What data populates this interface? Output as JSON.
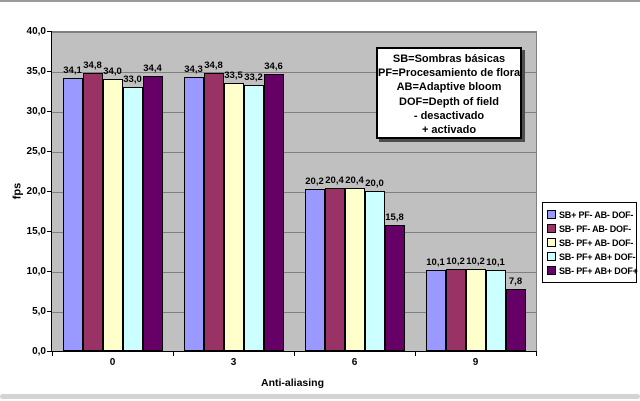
{
  "chart_data": {
    "type": "bar",
    "xlabel": "Anti-aliasing",
    "ylabel": "fps",
    "ylim": [
      0,
      40
    ],
    "ytick_step": 5,
    "decimal_separator": ",",
    "grid": true,
    "plot_bg": "#C0C0C0",
    "gridline_color": "#808080",
    "legend_position": "right",
    "categories": [
      "0",
      "3",
      "6",
      "9"
    ],
    "series": [
      {
        "name": "SB+ PF- AB- DOF-",
        "color": "#9999FF",
        "values": [
          34.1,
          34.3,
          20.2,
          10.1
        ]
      },
      {
        "name": "SB- PF- AB- DOF-",
        "color": "#993366",
        "values": [
          34.8,
          34.8,
          20.4,
          10.2
        ]
      },
      {
        "name": "SB- PF+ AB- DOF-",
        "color": "#FFFFCC",
        "values": [
          34.0,
          33.5,
          20.4,
          10.2
        ]
      },
      {
        "name": "SB- PF+ AB+ DOF-",
        "color": "#CCFFFF",
        "values": [
          33.0,
          33.2,
          20.0,
          10.1
        ]
      },
      {
        "name": "SB- PF+ AB+ DOF+",
        "color": "#660066",
        "values": [
          34.4,
          34.6,
          15.8,
          7.8
        ]
      }
    ],
    "annotation_lines": [
      "SB=Sombras básicas",
      "PF=Procesamiento de flora",
      "AB=Adaptive bloom",
      "DOF=Depth of field",
      "- desactivado",
      "+ activado"
    ]
  }
}
